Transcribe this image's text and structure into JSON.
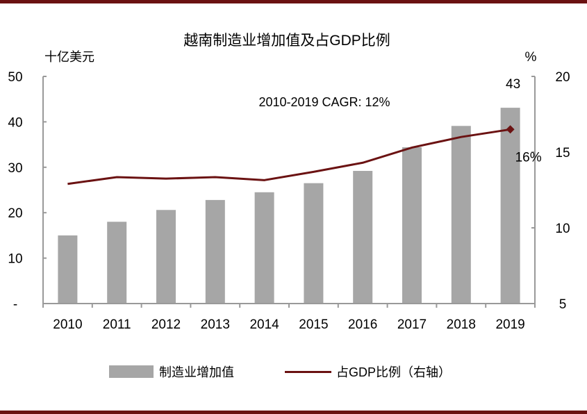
{
  "chart_data": {
    "type": "bar",
    "title": "越南制造业增加值及占GDP比例",
    "ylabel_left": "十亿美元",
    "ylabel_right": "%",
    "annotation": "2010-2019 CAGR: 12%",
    "categories": [
      "2010",
      "2011",
      "2012",
      "2013",
      "2014",
      "2015",
      "2016",
      "2017",
      "2018",
      "2019"
    ],
    "left_axis": {
      "ylim": [
        0,
        50
      ],
      "ticks": [
        0,
        10,
        20,
        30,
        40,
        50
      ],
      "tick_labels": [
        "-",
        "10",
        "20",
        "30",
        "40",
        "50"
      ]
    },
    "right_axis": {
      "ylim": [
        5,
        20
      ],
      "ticks": [
        5,
        10,
        15,
        20
      ],
      "tick_labels": [
        "5",
        "10",
        "15",
        "20"
      ]
    },
    "series": [
      {
        "name": "制造业增加值",
        "type": "bar",
        "axis": "left",
        "color": "#a6a6a6",
        "values": [
          15.0,
          18.0,
          20.6,
          22.8,
          24.5,
          26.5,
          29.2,
          34.4,
          39.1,
          43.1
        ],
        "data_labels": {
          "9": "43"
        }
      },
      {
        "name": "占GDP比例（右轴）",
        "type": "line",
        "axis": "right",
        "color": "#6b1212",
        "values": [
          12.9,
          13.35,
          13.25,
          13.35,
          13.15,
          13.7,
          14.3,
          15.3,
          16.0,
          16.5
        ],
        "data_labels": {
          "9": "16%"
        }
      }
    ],
    "grid": false,
    "legend_placement": "bottom"
  }
}
